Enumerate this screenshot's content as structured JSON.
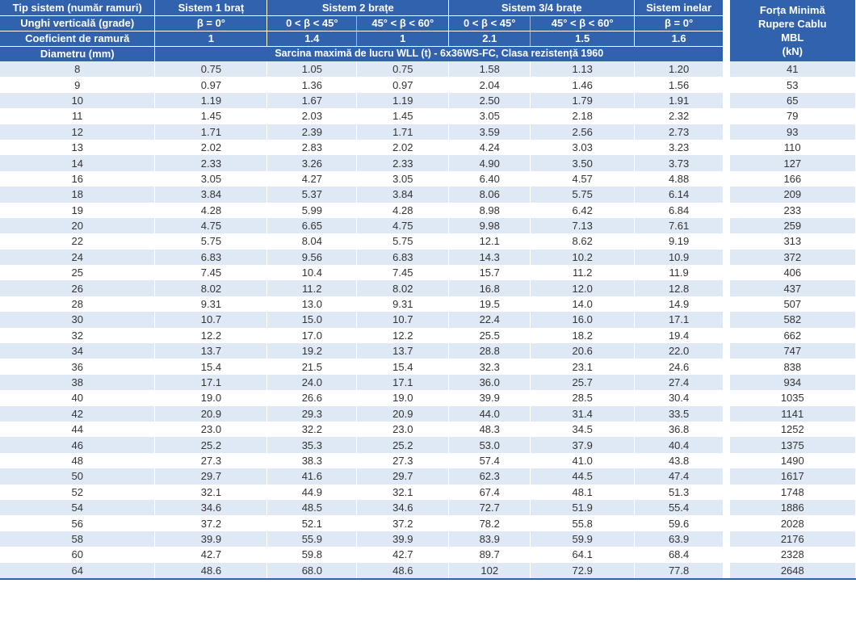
{
  "header": {
    "row1": {
      "label": "Tip sistem (număr ramuri)",
      "s1": "Sistem 1 braț",
      "s2": "Sistem 2 brațe",
      "s34": "Sistem 3/4 brațe",
      "ring": "Sistem inelar"
    },
    "row2": {
      "label": "Unghi verticală (grade)",
      "a1": "β = 0°",
      "a2": "0 < β < 45°",
      "a3": "45° < β < 60°",
      "a4": "0 < β < 45°",
      "a5": "45° < β < 60°",
      "a6": "β = 0°"
    },
    "row3": {
      "label": "Coeficient de ramură",
      "c1": "1",
      "c2": "1.4",
      "c3": "1",
      "c4": "2.1",
      "c5": "1.5",
      "c6": "1.6"
    },
    "row4": {
      "label": "Diametru (mm)",
      "wll": "Sarcina maximă de lucru WLL (t) - 6x36WS-FC, Clasa rezistență 1960"
    },
    "mbl": {
      "line1": "Forța Minimă",
      "line2": "Rupere Cablu",
      "line3": "MBL",
      "line4": "(kN)"
    }
  },
  "rows": [
    [
      "8",
      "0.75",
      "1.05",
      "0.75",
      "1.58",
      "1.13",
      "1.20",
      "41"
    ],
    [
      "9",
      "0.97",
      "1.36",
      "0.97",
      "2.04",
      "1.46",
      "1.56",
      "53"
    ],
    [
      "10",
      "1.19",
      "1.67",
      "1.19",
      "2.50",
      "1.79",
      "1.91",
      "65"
    ],
    [
      "11",
      "1.45",
      "2.03",
      "1.45",
      "3.05",
      "2.18",
      "2.32",
      "79"
    ],
    [
      "12",
      "1.71",
      "2.39",
      "1.71",
      "3.59",
      "2.56",
      "2.73",
      "93"
    ],
    [
      "13",
      "2.02",
      "2.83",
      "2.02",
      "4.24",
      "3.03",
      "3.23",
      "110"
    ],
    [
      "14",
      "2.33",
      "3.26",
      "2.33",
      "4.90",
      "3.50",
      "3.73",
      "127"
    ],
    [
      "16",
      "3.05",
      "4.27",
      "3.05",
      "6.40",
      "4.57",
      "4.88",
      "166"
    ],
    [
      "18",
      "3.84",
      "5.37",
      "3.84",
      "8.06",
      "5.75",
      "6.14",
      "209"
    ],
    [
      "19",
      "4.28",
      "5.99",
      "4.28",
      "8.98",
      "6.42",
      "6.84",
      "233"
    ],
    [
      "20",
      "4.75",
      "6.65",
      "4.75",
      "9.98",
      "7.13",
      "7.61",
      "259"
    ],
    [
      "22",
      "5.75",
      "8.04",
      "5.75",
      "12.1",
      "8.62",
      "9.19",
      "313"
    ],
    [
      "24",
      "6.83",
      "9.56",
      "6.83",
      "14.3",
      "10.2",
      "10.9",
      "372"
    ],
    [
      "25",
      "7.45",
      "10.4",
      "7.45",
      "15.7",
      "11.2",
      "11.9",
      "406"
    ],
    [
      "26",
      "8.02",
      "11.2",
      "8.02",
      "16.8",
      "12.0",
      "12.8",
      "437"
    ],
    [
      "28",
      "9.31",
      "13.0",
      "9.31",
      "19.5",
      "14.0",
      "14.9",
      "507"
    ],
    [
      "30",
      "10.7",
      "15.0",
      "10.7",
      "22.4",
      "16.0",
      "17.1",
      "582"
    ],
    [
      "32",
      "12.2",
      "17.0",
      "12.2",
      "25.5",
      "18.2",
      "19.4",
      "662"
    ],
    [
      "34",
      "13.7",
      "19.2",
      "13.7",
      "28.8",
      "20.6",
      "22.0",
      "747"
    ],
    [
      "36",
      "15.4",
      "21.5",
      "15.4",
      "32.3",
      "23.1",
      "24.6",
      "838"
    ],
    [
      "38",
      "17.1",
      "24.0",
      "17.1",
      "36.0",
      "25.7",
      "27.4",
      "934"
    ],
    [
      "40",
      "19.0",
      "26.6",
      "19.0",
      "39.9",
      "28.5",
      "30.4",
      "1035"
    ],
    [
      "42",
      "20.9",
      "29.3",
      "20.9",
      "44.0",
      "31.4",
      "33.5",
      "1141"
    ],
    [
      "44",
      "23.0",
      "32.2",
      "23.0",
      "48.3",
      "34.5",
      "36.8",
      "1252"
    ],
    [
      "46",
      "25.2",
      "35.3",
      "25.2",
      "53.0",
      "37.9",
      "40.4",
      "1375"
    ],
    [
      "48",
      "27.3",
      "38.3",
      "27.3",
      "57.4",
      "41.0",
      "43.8",
      "1490"
    ],
    [
      "50",
      "29.7",
      "41.6",
      "29.7",
      "62.3",
      "44.5",
      "47.4",
      "1617"
    ],
    [
      "52",
      "32.1",
      "44.9",
      "32.1",
      "67.4",
      "48.1",
      "51.3",
      "1748"
    ],
    [
      "54",
      "34.6",
      "48.5",
      "34.6",
      "72.7",
      "51.9",
      "55.4",
      "1886"
    ],
    [
      "56",
      "37.2",
      "52.1",
      "37.2",
      "78.2",
      "55.8",
      "59.6",
      "2028"
    ],
    [
      "58",
      "39.9",
      "55.9",
      "39.9",
      "83.9",
      "59.9",
      "63.9",
      "2176"
    ],
    [
      "60",
      "42.7",
      "59.8",
      "42.7",
      "89.7",
      "64.1",
      "68.4",
      "2328"
    ],
    [
      "64",
      "48.6",
      "68.0",
      "48.6",
      "102",
      "72.9",
      "77.8",
      "2648"
    ]
  ],
  "colors": {
    "header_bg": "#3162ad",
    "stripe": "#dfe8f5",
    "text": "#333333"
  }
}
